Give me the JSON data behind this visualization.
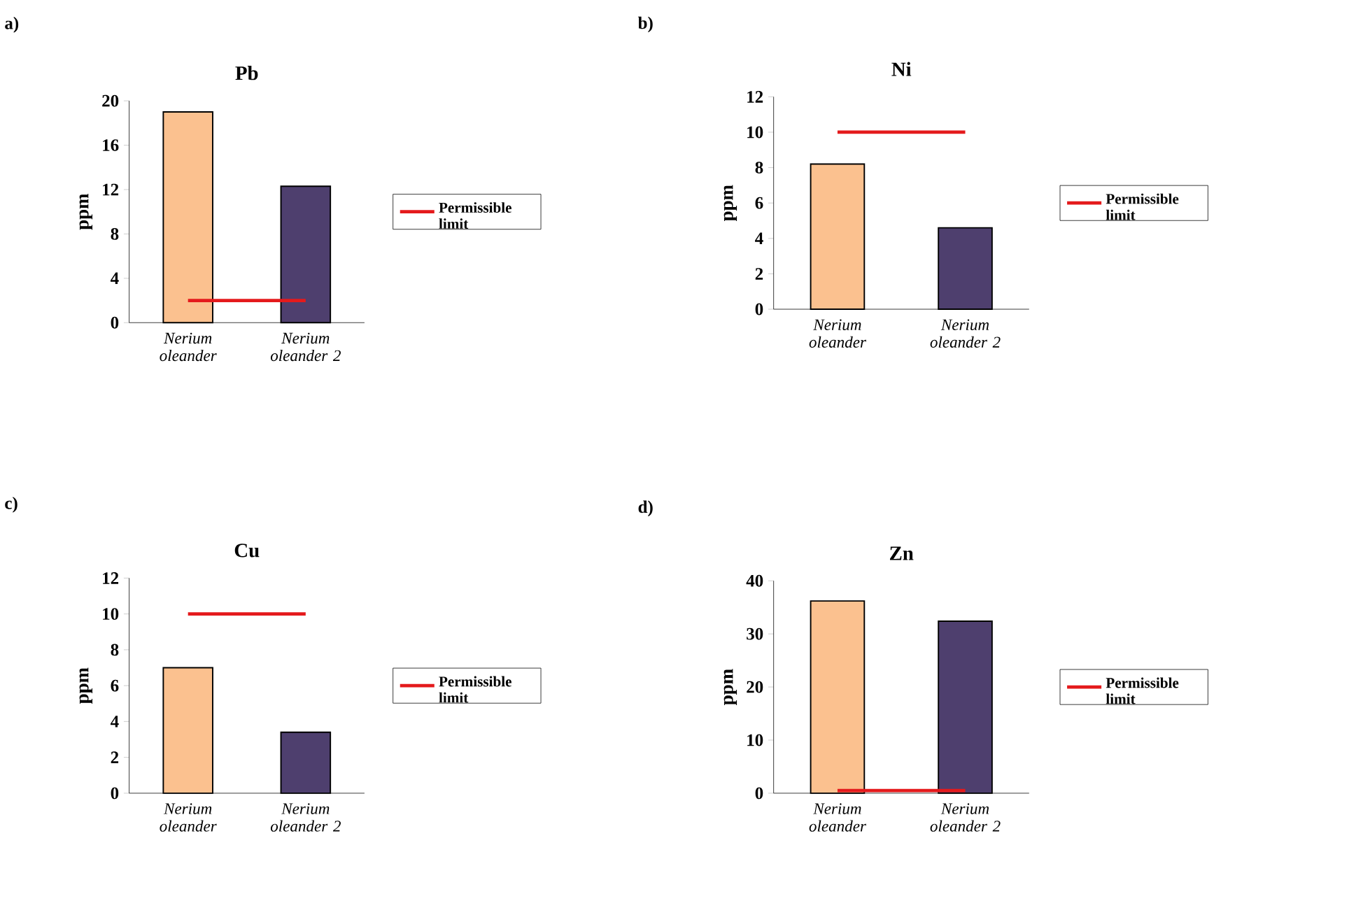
{
  "chart_data": [
    {
      "type": "bar",
      "title": "Pb",
      "annotations": [
        "a)"
      ],
      "ylabel": "ppm",
      "categories": [
        "Nerium oleander",
        "Nerium oleander 2"
      ],
      "ylim": [
        0,
        20
      ],
      "yticks": [
        0,
        4,
        8,
        12,
        16,
        20
      ],
      "legend": "right",
      "series": [
        {
          "values": [
            19,
            12.3
          ],
          "colors": [
            "#fbc18f",
            "#4e3f6e"
          ]
        },
        {
          "type": "line",
          "name": "Permissible limit",
          "color": "#e41a1c",
          "values": [
            2,
            2
          ]
        }
      ]
    },
    {
      "type": "bar",
      "title": "Ni",
      "annotations": [
        "b)"
      ],
      "ylabel": "ppm",
      "categories": [
        "Nerium oleander",
        "Nerium oleander 2"
      ],
      "ylim": [
        0,
        12
      ],
      "yticks": [
        0,
        2,
        4,
        6,
        8,
        10,
        12
      ],
      "legend": "right",
      "series": [
        {
          "values": [
            8.2,
            4.6
          ],
          "colors": [
            "#fbc18f",
            "#4e3f6e"
          ]
        },
        {
          "type": "line",
          "name": "Permissible limit",
          "color": "#e41a1c",
          "values": [
            10,
            10
          ]
        }
      ]
    },
    {
      "type": "bar",
      "title": "Cu",
      "annotations": [
        "c)"
      ],
      "ylabel": "ppm",
      "categories": [
        "Nerium oleander",
        "Nerium oleander 2"
      ],
      "ylim": [
        0,
        12
      ],
      "yticks": [
        0,
        2,
        4,
        6,
        8,
        10,
        12
      ],
      "legend": "right",
      "series": [
        {
          "values": [
            7.0,
            3.4
          ],
          "colors": [
            "#fbc18f",
            "#4e3f6e"
          ]
        },
        {
          "type": "line",
          "name": "Permissible limit",
          "color": "#e41a1c",
          "values": [
            10,
            10
          ]
        }
      ]
    },
    {
      "type": "bar",
      "title": "Zn",
      "annotations": [
        "d)"
      ],
      "ylabel": "ppm",
      "categories": [
        "Nerium oleander",
        "Nerium oleander 2"
      ],
      "ylim": [
        0,
        40
      ],
      "yticks": [
        0,
        10,
        20,
        30,
        40
      ],
      "legend": "right",
      "series": [
        {
          "values": [
            36.2,
            32.4
          ],
          "colors": [
            "#fbc18f",
            "#4e3f6e"
          ]
        },
        {
          "type": "line",
          "name": "Permissible limit",
          "color": "#e41a1c",
          "values": [
            0.5,
            0.5
          ]
        }
      ]
    }
  ]
}
